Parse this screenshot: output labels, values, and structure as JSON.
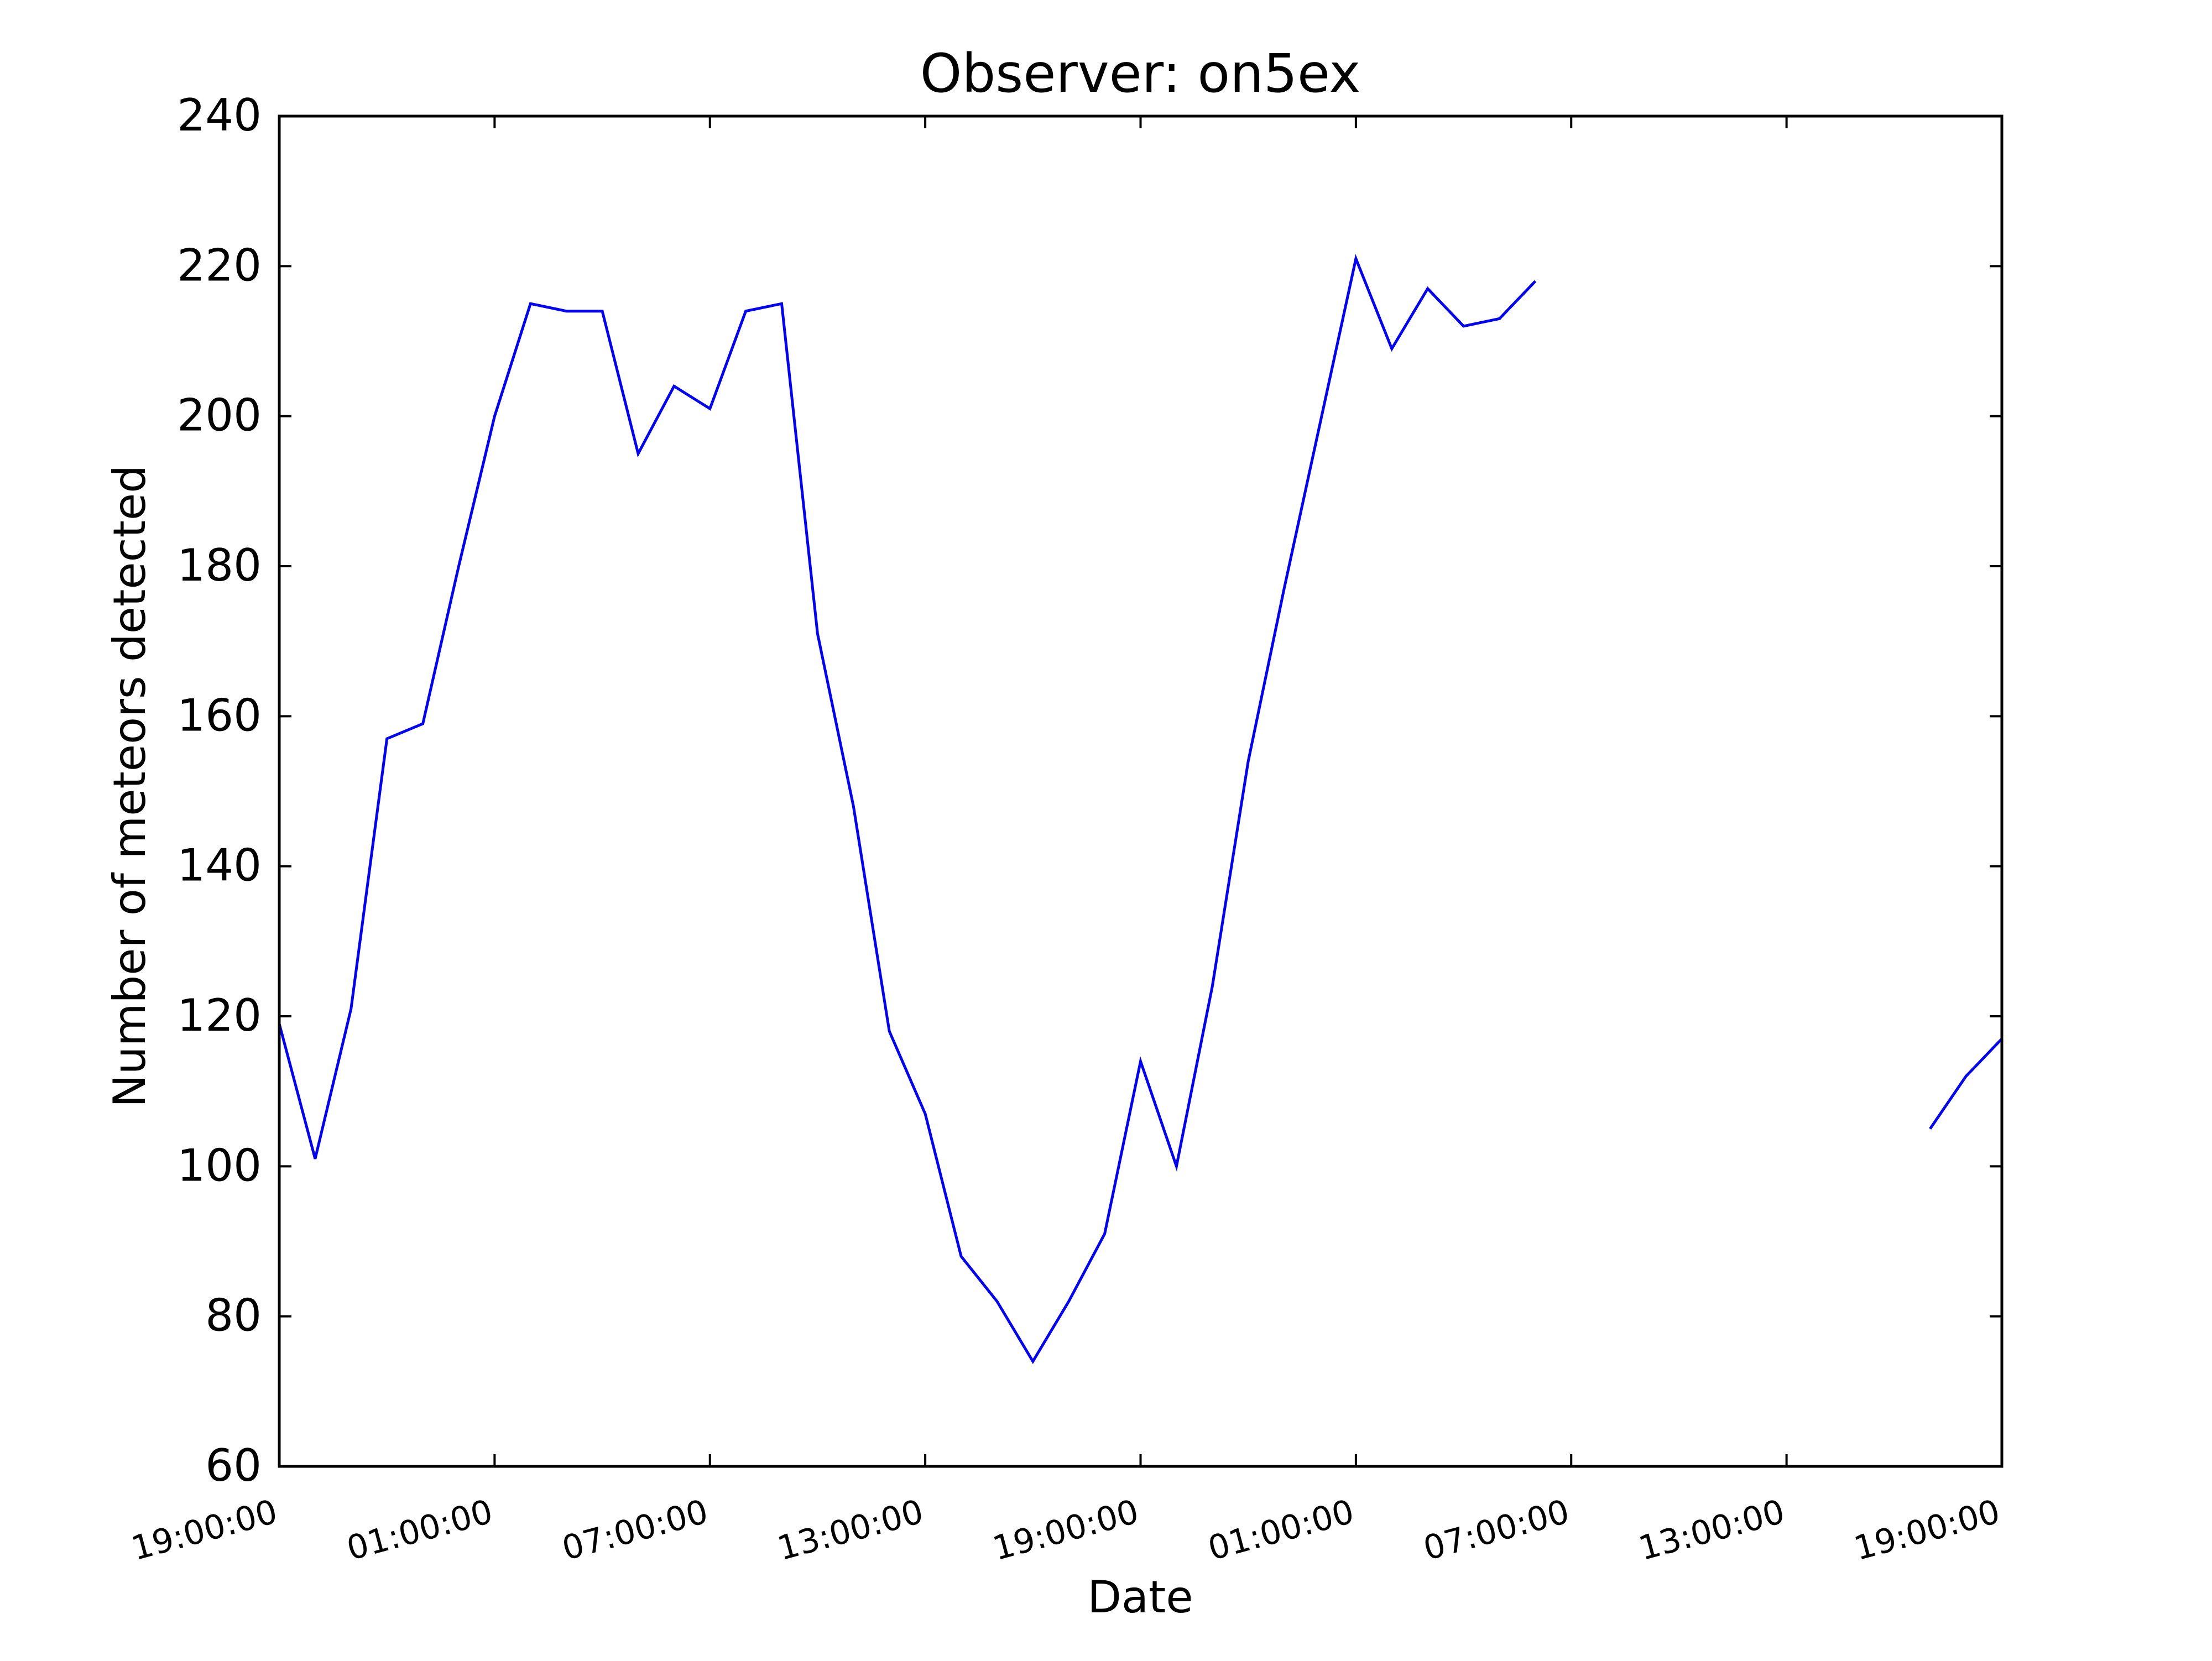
{
  "chart_data": {
    "type": "line",
    "title": "Observer: on5ex",
    "xlabel": "Date",
    "ylabel": "Number of meteors detected",
    "ylim": [
      60,
      240
    ],
    "yticks": [
      "60",
      "80",
      "100",
      "120",
      "140",
      "160",
      "180",
      "200",
      "220",
      "240"
    ],
    "xlim": [
      "19:00:00",
      "19:00:00"
    ],
    "xticks": [
      "19:00:00",
      "01:00:00",
      "07:00:00",
      "13:00:00",
      "19:00:00",
      "01:00:00",
      "07:00:00",
      "13:00:00",
      "19:00:00"
    ],
    "x_unit": "hourly counts",
    "grid": false,
    "line_color": "#0000ff",
    "series": [
      {
        "segments": [
          {
            "x": [
              "19:00",
              "20:00",
              "21:00",
              "22:00",
              "23:00",
              "00:00",
              "01:00",
              "02:00",
              "03:00",
              "04:00",
              "05:00",
              "06:00",
              "07:00",
              "08:00",
              "09:00",
              "10:00",
              "11:00",
              "12:00",
              "13:00",
              "14:00",
              "15:00",
              "16:00",
              "17:00",
              "18:00",
              "19:00",
              "20:00",
              "21:00",
              "22:00",
              "23:00",
              "00:00",
              "01:00",
              "02:00",
              "03:00",
              "04:00",
              "05:00",
              "06:00"
            ],
            "values": [
              119,
              101,
              121,
              157,
              159,
              180,
              200,
              215,
              214,
              214,
              195,
              204,
              201,
              214,
              215,
              171,
              148,
              118,
              107,
              88,
              82,
              74,
              82,
              91,
              114,
              100,
              124,
              154,
              177,
              199,
              221,
              209,
              217,
              212,
              213,
              218
            ]
          },
          {
            "x": [
              "17:00",
              "18:00",
              "19:00"
            ],
            "values": [
              105,
              112,
              117
            ]
          }
        ]
      }
    ]
  }
}
